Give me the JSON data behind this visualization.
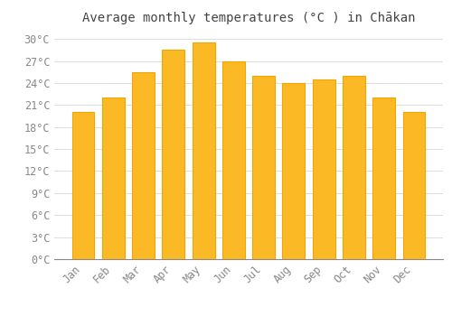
{
  "title": "Average monthly temperatures (°C ) in Chākan",
  "months": [
    "Jan",
    "Feb",
    "Mar",
    "Apr",
    "May",
    "Jun",
    "Jul",
    "Aug",
    "Sep",
    "Oct",
    "Nov",
    "Dec"
  ],
  "temperatures": [
    20.0,
    22.0,
    25.5,
    28.5,
    29.5,
    27.0,
    25.0,
    24.0,
    24.5,
    25.0,
    22.0,
    20.0
  ],
  "bar_color_face": "#FBBA25",
  "bar_color_edge": "#F0A500",
  "background_color": "#FFFFFF",
  "grid_color": "#DDDDDD",
  "tick_label_color": "#888888",
  "title_color": "#444444",
  "ylim": [
    0,
    31
  ],
  "yticks": [
    0,
    3,
    6,
    9,
    12,
    15,
    18,
    21,
    24,
    27,
    30
  ],
  "title_fontsize": 10,
  "tick_fontsize": 8.5
}
